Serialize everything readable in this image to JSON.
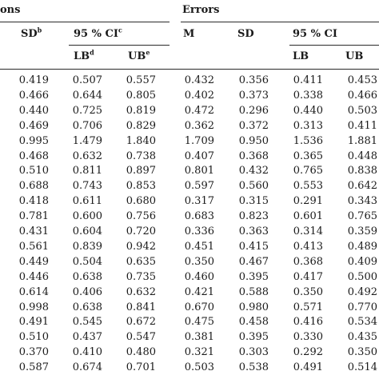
{
  "headers": {
    "group_left": "ons",
    "group_right": "Errors",
    "sd_left": "SD",
    "sd_left_sup": "b",
    "ci_left": "95 % CI",
    "ci_left_sup": "c",
    "lb_left": "LB",
    "lb_left_sup": "d",
    "ub_left": "UB",
    "ub_left_sup": "e",
    "m_right": "M",
    "sd_right": "SD",
    "ci_right": "95 % CI",
    "lb_right": "LB",
    "ub_right": "UB"
  },
  "rows": [
    [
      "0.419",
      "0.507",
      "0.557",
      "0.432",
      "0.356",
      "0.411",
      "0.453"
    ],
    [
      "0.466",
      "0.644",
      "0.805",
      "0.402",
      "0.373",
      "0.338",
      "0.466"
    ],
    [
      "0.440",
      "0.725",
      "0.819",
      "0.472",
      "0.296",
      "0.440",
      "0.503"
    ],
    [
      "0.469",
      "0.706",
      "0.829",
      "0.362",
      "0.372",
      "0.313",
      "0.411"
    ],
    [
      "0.995",
      "1.479",
      "1.840",
      "1.709",
      "0.950",
      "1.536",
      "1.881"
    ],
    [
      "0.468",
      "0.632",
      "0.738",
      "0.407",
      "0.368",
      "0.365",
      "0.448"
    ],
    [
      "0.510",
      "0.811",
      "0.897",
      "0.801",
      "0.432",
      "0.765",
      "0.838"
    ],
    [
      "0.688",
      "0.743",
      "0.853",
      "0.597",
      "0.560",
      "0.553",
      "0.642"
    ],
    [
      "0.418",
      "0.611",
      "0.680",
      "0.317",
      "0.315",
      "0.291",
      "0.343"
    ],
    [
      "0.781",
      "0.600",
      "0.756",
      "0.683",
      "0.823",
      "0.601",
      "0.765"
    ],
    [
      "0.431",
      "0.604",
      "0.720",
      "0.336",
      "0.363",
      "0.314",
      "0.359"
    ],
    [
      "0.561",
      "0.839",
      "0.942",
      "0.451",
      "0.415",
      "0.413",
      "0.489"
    ],
    [
      "0.449",
      "0.504",
      "0.635",
      "0.350",
      "0.467",
      "0.368",
      "0.409"
    ],
    [
      "0.446",
      "0.638",
      "0.735",
      "0.460",
      "0.395",
      "0.417",
      "0.500"
    ],
    [
      "0.614",
      "0.406",
      "0.632",
      "0.421",
      "0.588",
      "0.350",
      "0.492"
    ],
    [
      "0.998",
      "0.638",
      "0.841",
      "0.670",
      "0.980",
      "0.571",
      "0.770"
    ],
    [
      "0.491",
      "0.545",
      "0.672",
      "0.475",
      "0.458",
      "0.416",
      "0.534"
    ],
    [
      "0.510",
      "0.437",
      "0.547",
      "0.381",
      "0.395",
      "0.330",
      "0.435"
    ],
    [
      "0.370",
      "0.410",
      "0.480",
      "0.321",
      "0.303",
      "0.292",
      "0.350"
    ],
    [
      "0.587",
      "0.674",
      "0.701",
      "0.503",
      "0.538",
      "0.491",
      "0.514"
    ]
  ]
}
